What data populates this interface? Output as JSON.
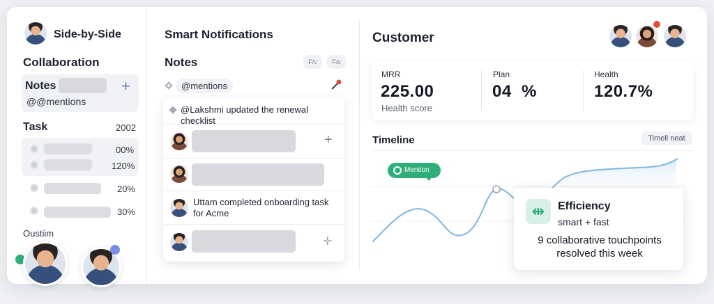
{
  "left": {
    "header_title": "Side-by-Side",
    "section_title": "Collaboration",
    "notes_label": "Notes",
    "mentions_text": "@@mentions",
    "task_title": "Task",
    "task_count": "2002",
    "tasks": [
      {
        "value": "00%"
      },
      {
        "value": "120%"
      },
      {
        "value": "20%"
      },
      {
        "value": "30%"
      }
    ],
    "footer_label": "Oustiim"
  },
  "middle": {
    "title": "Smart Notifications",
    "notes_title": "Notes",
    "chip_1": "F/c",
    "chip_2": "F/c",
    "mentions_tag": "@mentions",
    "notification_header": "@Lakshmi updated the renewal checklist",
    "notification_text": "Uttam completed onboarding task for Acme"
  },
  "right": {
    "title": "Customer",
    "metrics": [
      {
        "label": "MRR",
        "value": "225.00",
        "sub": "Health score"
      },
      {
        "label": "Plan",
        "value": "04  %"
      },
      {
        "label": "Health",
        "value": "120.7%"
      }
    ],
    "timeline_title": "Timeline",
    "timeline_button": "Timell neat",
    "mention_pill": "Mention",
    "efficiency_title": "Efficiency",
    "efficiency_sub": "smart + fast",
    "efficiency_text": "9 collaborative touchpoints resolved this week"
  },
  "colors": {
    "accent_green": "#2fae7a",
    "accent_blue": "#7a8ce6",
    "notification_red": "#e84b3c",
    "line_blue": "#7fb6df"
  }
}
